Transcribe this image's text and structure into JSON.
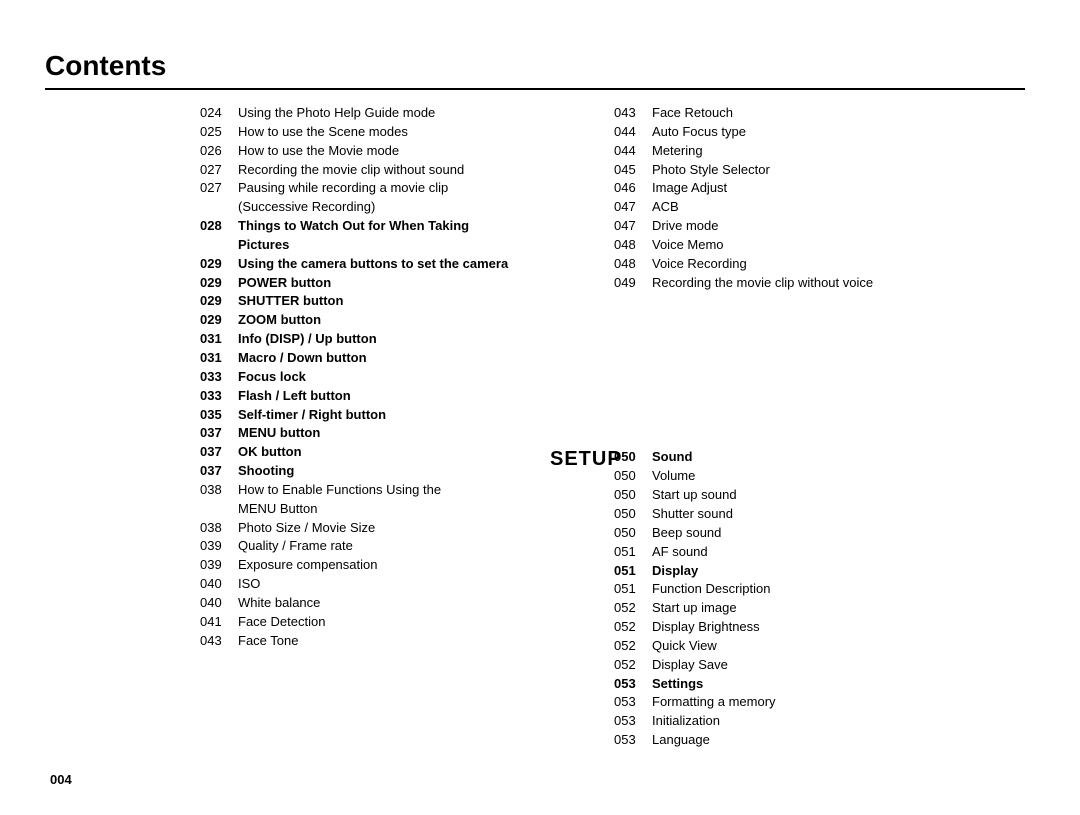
{
  "title": "Contents",
  "page_number": "004",
  "section_label": "SETUP",
  "left_column": [
    {
      "page": "024",
      "text": "Using the Photo Help Guide mode",
      "bold": false
    },
    {
      "page": "025",
      "text": "How to use the Scene modes",
      "bold": false
    },
    {
      "page": "026",
      "text": "How to use the Movie mode",
      "bold": false
    },
    {
      "page": "027",
      "text": "Recording the movie clip without sound",
      "bold": false
    },
    {
      "page": "027",
      "text": "Pausing while recording a movie clip",
      "bold": false
    },
    {
      "page": "",
      "text": "(Successive Recording)",
      "bold": false
    },
    {
      "page": "028",
      "text": "Things to Watch Out for When Taking",
      "bold": true
    },
    {
      "page": "",
      "text": "Pictures",
      "bold": true
    },
    {
      "page": "029",
      "text": "Using the camera buttons to set the camera",
      "bold": true
    },
    {
      "page": "029",
      "text": "POWER button",
      "bold": true
    },
    {
      "page": "029",
      "text": "SHUTTER button",
      "bold": true
    },
    {
      "page": "029",
      "text": "ZOOM button",
      "bold": true
    },
    {
      "page": "031",
      "text": "Info (DISP) / Up button",
      "bold": true
    },
    {
      "page": "031",
      "text": "Macro / Down button",
      "bold": true
    },
    {
      "page": "033",
      "text": "Focus lock",
      "bold": true
    },
    {
      "page": "033",
      "text": "Flash / Left button",
      "bold": true
    },
    {
      "page": "035",
      "text": "Self-timer / Right button",
      "bold": true
    },
    {
      "page": "037",
      "text": "MENU button",
      "bold": true
    },
    {
      "page": "037",
      "text": "OK button",
      "bold": true
    },
    {
      "page": "037",
      "text": "Shooting",
      "bold": true
    },
    {
      "page": "038",
      "text": "How to Enable Functions Using the",
      "bold": false
    },
    {
      "page": "",
      "text": "MENU Button",
      "bold": false
    },
    {
      "page": "038",
      "text": "Photo Size / Movie Size",
      "bold": false
    },
    {
      "page": "039",
      "text": "Quality / Frame rate",
      "bold": false
    },
    {
      "page": "039",
      "text": "Exposure compensation",
      "bold": false
    },
    {
      "page": "040",
      "text": "ISO",
      "bold": false
    },
    {
      "page": "040",
      "text": "White balance",
      "bold": false
    },
    {
      "page": "041",
      "text": "Face Detection",
      "bold": false
    },
    {
      "page": "043",
      "text": "Face Tone",
      "bold": false
    }
  ],
  "right_top": [
    {
      "page": "043",
      "text": "Face Retouch",
      "bold": false
    },
    {
      "page": "044",
      "text": "Auto Focus type",
      "bold": false
    },
    {
      "page": "044",
      "text": "Metering",
      "bold": false
    },
    {
      "page": "045",
      "text": "Photo Style Selector",
      "bold": false
    },
    {
      "page": "046",
      "text": "Image Adjust",
      "bold": false
    },
    {
      "page": "047",
      "text": "ACB",
      "bold": false
    },
    {
      "page": "047",
      "text": "Drive mode",
      "bold": false
    },
    {
      "page": "048",
      "text": "Voice Memo",
      "bold": false
    },
    {
      "page": "048",
      "text": "Voice Recording",
      "bold": false
    },
    {
      "page": "049",
      "text": "Recording the movie clip without voice",
      "bold": false
    }
  ],
  "right_setup": [
    {
      "page": "050",
      "text": "Sound",
      "bold": true
    },
    {
      "page": "050",
      "text": "Volume",
      "bold": false
    },
    {
      "page": "050",
      "text": "Start up sound",
      "bold": false
    },
    {
      "page": "050",
      "text": "Shutter sound",
      "bold": false
    },
    {
      "page": "050",
      "text": "Beep sound",
      "bold": false
    },
    {
      "page": "051",
      "text": "AF sound",
      "bold": false
    },
    {
      "page": "051",
      "text": "Display",
      "bold": true
    },
    {
      "page": "051",
      "text": "Function Description",
      "bold": false
    },
    {
      "page": "052",
      "text": "Start up image",
      "bold": false
    },
    {
      "page": "052",
      "text": "Display Brightness",
      "bold": false
    },
    {
      "page": "052",
      "text": "Quick View",
      "bold": false
    },
    {
      "page": "052",
      "text": "Display Save",
      "bold": false
    },
    {
      "page": "053",
      "text": "Settings",
      "bold": true
    },
    {
      "page": "053",
      "text": "Formatting a memory",
      "bold": false
    },
    {
      "page": "053",
      "text": "Initialization",
      "bold": false
    },
    {
      "page": "053",
      "text": "Language",
      "bold": false
    }
  ]
}
